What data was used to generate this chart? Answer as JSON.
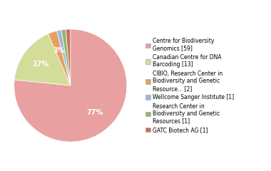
{
  "labels": [
    "Centre for Biodiversity\nGenomics [59]",
    "Canadian Centre for DNA\nBarcoding [13]",
    "CIBIO, Research Center in\nBiodiversity and Genetic\nResource... [2]",
    "Wellcome Sanger Institute [1]",
    "Research Center in\nBiodiversity and Genetic\nResources [1]",
    "GATC Biotech AG [1]"
  ],
  "values": [
    59,
    13,
    2,
    1,
    1,
    1
  ],
  "colors": [
    "#e8a0a0",
    "#d4dc9a",
    "#e8a060",
    "#a0b8d8",
    "#90b870",
    "#c87060"
  ],
  "figsize": [
    3.8,
    2.4
  ],
  "dpi": 100
}
